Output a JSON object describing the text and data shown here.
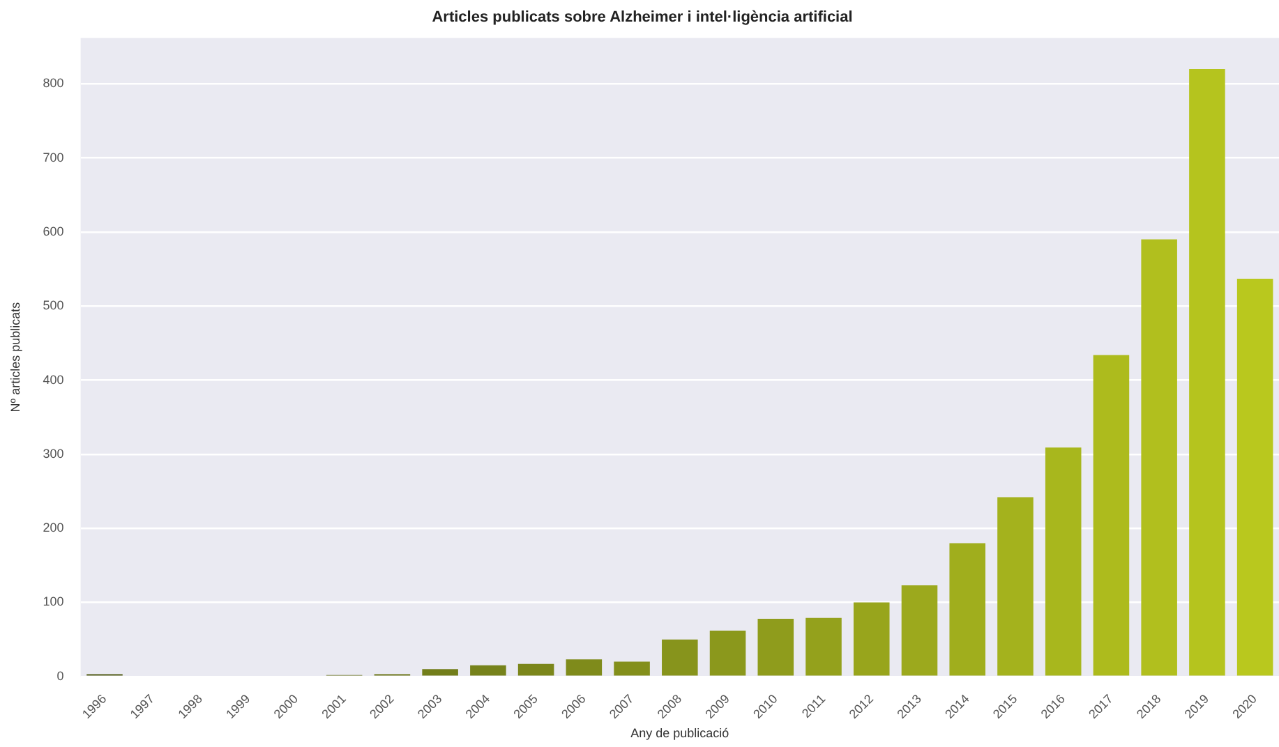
{
  "chart_data": {
    "type": "bar",
    "title": "Articles publicats sobre Alzheimer i intel·ligència artificial",
    "xlabel": "Any de publicació",
    "ylabel": "Nº articles publicats",
    "categories": [
      "1996",
      "1997",
      "1998",
      "1999",
      "2000",
      "2001",
      "2002",
      "2003",
      "2004",
      "2005",
      "2006",
      "2007",
      "2008",
      "2009",
      "2010",
      "2011",
      "2012",
      "2013",
      "2014",
      "2015",
      "2016",
      "2017",
      "2018",
      "2019",
      "2020"
    ],
    "values": [
      3,
      0,
      0,
      0,
      0,
      2,
      3,
      10,
      15,
      17,
      23,
      20,
      50,
      62,
      78,
      79,
      100,
      123,
      180,
      242,
      309,
      434,
      590,
      820,
      537
    ],
    "colors": [
      "#555f19",
      "#596319",
      "#5d6819",
      "#626c1a",
      "#66711a",
      "#6a751a",
      "#6e791a",
      "#727e1a",
      "#76821b",
      "#7b861b",
      "#7f8b1b",
      "#838f1b",
      "#87941c",
      "#8b981c",
      "#8f9c1c",
      "#94a11c",
      "#98a51c",
      "#9ca91d",
      "#a0ae1d",
      "#a4b21d",
      "#a8b71d",
      "#adbb1d",
      "#b1bf1e",
      "#b5c41e",
      "#b9c81e"
    ],
    "ylim": [
      0,
      862
    ],
    "yticks": [
      0,
      100,
      200,
      300,
      400,
      500,
      600,
      700,
      800
    ],
    "grid": "y",
    "legend": false
  }
}
